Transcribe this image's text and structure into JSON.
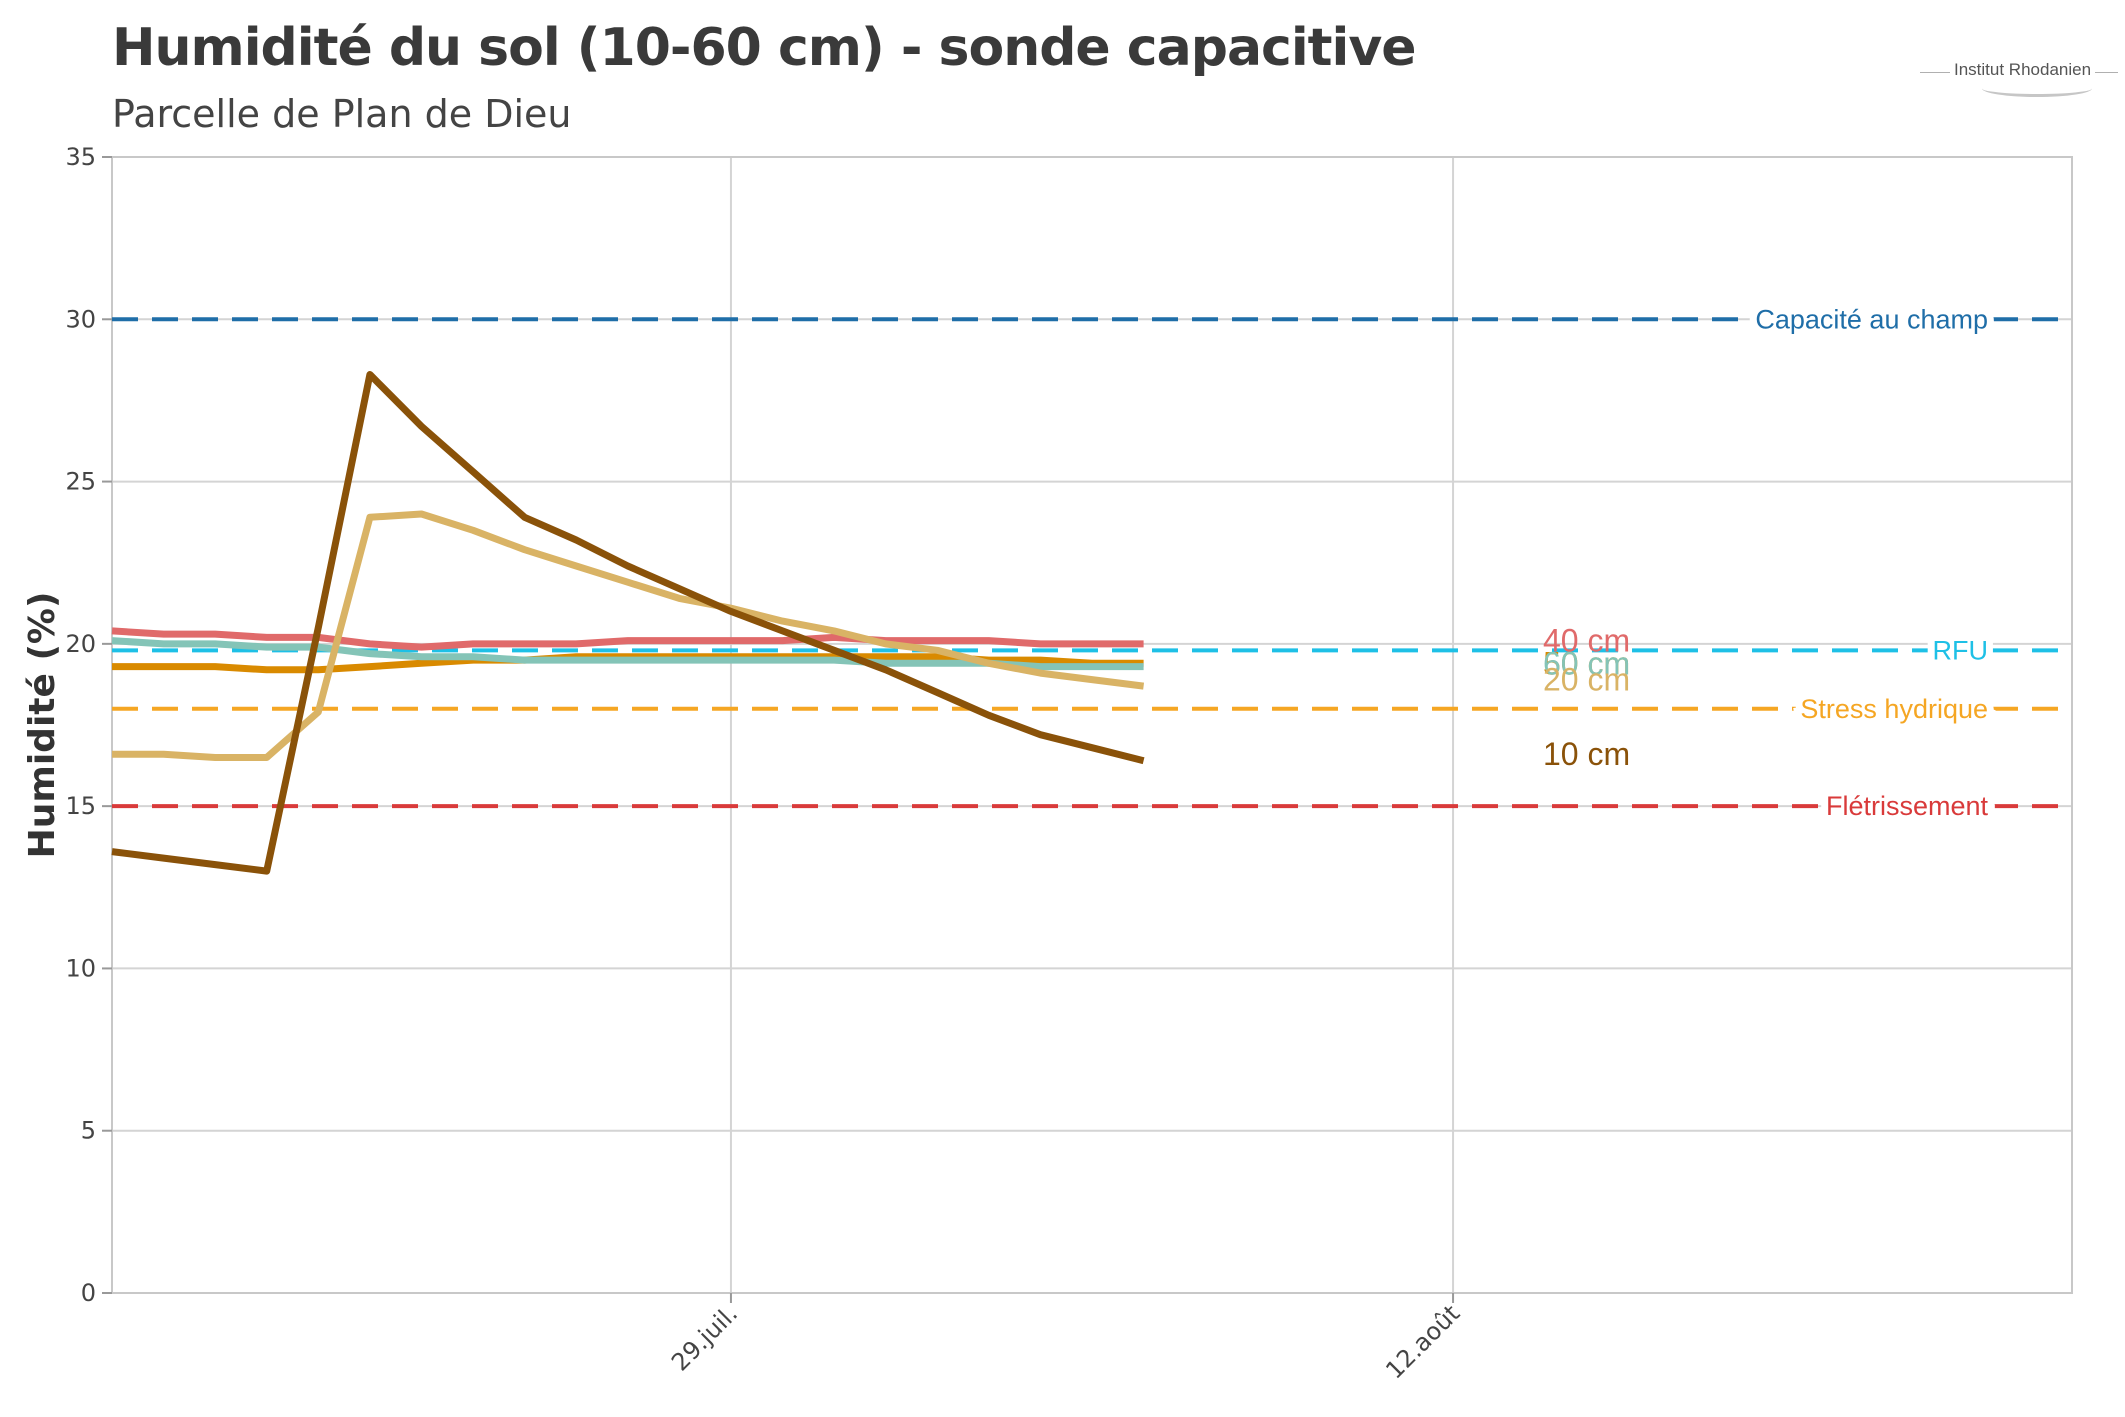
{
  "header": {
    "title": "Humidité du sol (10-60 cm) - sonde capacitive",
    "subtitle": "Parcelle de Plan de Dieu",
    "logo_text": "Institut Rhodanien"
  },
  "chart_data": {
    "type": "line",
    "title": "Humidité du sol (10-60 cm) - sonde capacitive",
    "subtitle": "Parcelle de Plan de Dieu",
    "ylabel": "Humidité (%)",
    "xlabel": "",
    "ylim": [
      0,
      35
    ],
    "yticks": [
      0,
      5,
      10,
      15,
      20,
      25,
      30,
      35
    ],
    "xlim": [
      "2024-07-17",
      "2024-08-24"
    ],
    "xticks": [
      {
        "date": "2024-07-29",
        "label": "29.juil."
      },
      {
        "date": "2024-08-12",
        "label": "12.août"
      }
    ],
    "grid": true,
    "x": [
      "2024-07-17",
      "2024-07-18",
      "2024-07-19",
      "2024-07-20",
      "2024-07-21",
      "2024-07-22",
      "2024-07-23",
      "2024-07-24",
      "2024-07-25",
      "2024-07-26",
      "2024-07-27",
      "2024-07-28",
      "2024-07-29",
      "2024-07-30",
      "2024-07-31",
      "2024-08-01",
      "2024-08-02",
      "2024-08-03",
      "2024-08-04",
      "2024-08-05",
      "2024-08-06",
      "2024-08-07"
    ],
    "series": [
      {
        "name": "10 cm",
        "color": "#8a5209",
        "values": [
          13.6,
          13.4,
          13.2,
          13.0,
          20.5,
          28.3,
          26.7,
          25.3,
          23.9,
          23.2,
          22.4,
          21.7,
          21.0,
          20.4,
          19.8,
          19.2,
          18.5,
          17.8,
          17.2,
          16.8,
          16.4,
          null
        ]
      },
      {
        "name": "20 cm",
        "color": "#d9b365",
        "values": [
          16.6,
          16.6,
          16.5,
          16.5,
          17.9,
          23.9,
          24.0,
          23.5,
          22.9,
          22.4,
          21.9,
          21.4,
          21.1,
          20.7,
          20.4,
          20.0,
          19.8,
          19.4,
          19.1,
          18.9,
          18.7,
          null
        ]
      },
      {
        "name": "40 cm",
        "color": "#e06a6a",
        "values": [
          20.4,
          20.3,
          20.3,
          20.2,
          20.2,
          20.0,
          19.9,
          20.0,
          20.0,
          20.0,
          20.1,
          20.1,
          20.1,
          20.1,
          20.2,
          20.1,
          20.1,
          20.1,
          20.0,
          20.0,
          20.0,
          null
        ]
      },
      {
        "name": "50 cm",
        "color": "#d98a00",
        "values": [
          19.3,
          19.3,
          19.3,
          19.2,
          19.2,
          19.3,
          19.4,
          19.5,
          19.5,
          19.6,
          19.6,
          19.6,
          19.6,
          19.6,
          19.6,
          19.6,
          19.6,
          19.5,
          19.5,
          19.4,
          19.4,
          null
        ]
      },
      {
        "name": "60 cm",
        "color": "#84c4b7",
        "values": [
          20.1,
          20.0,
          20.0,
          19.9,
          19.9,
          19.7,
          19.6,
          19.6,
          19.5,
          19.5,
          19.5,
          19.5,
          19.5,
          19.5,
          19.5,
          19.4,
          19.4,
          19.4,
          19.3,
          19.3,
          19.3,
          null
        ]
      }
    ],
    "series_labels": [
      {
        "series": "40 cm",
        "text": "40 cm",
        "color": "#e06a6a",
        "y": 20.1
      },
      {
        "series": "50 cm",
        "text": "50 cm",
        "color": "#d98a00",
        "y": 19.4
      },
      {
        "series": "60 cm",
        "text": "60 cm",
        "color": "#84c4b7",
        "y": 19.4
      },
      {
        "series": "20 cm",
        "text": "20 cm",
        "color": "#d9b365",
        "y": 18.9
      },
      {
        "series": "10 cm",
        "text": "10 cm",
        "color": "#8a5209",
        "y": 16.6
      }
    ],
    "reference_lines": [
      {
        "label": "Capacité au champ",
        "value": 30.0,
        "color": "#1f6ea8"
      },
      {
        "label": "RFU",
        "value": 19.8,
        "color": "#1ec0e6"
      },
      {
        "label": "Stress hydrique",
        "value": 18.0,
        "color": "#f5a623"
      },
      {
        "label": "Flétrissement",
        "value": 15.0,
        "color": "#d93a3a"
      }
    ]
  }
}
